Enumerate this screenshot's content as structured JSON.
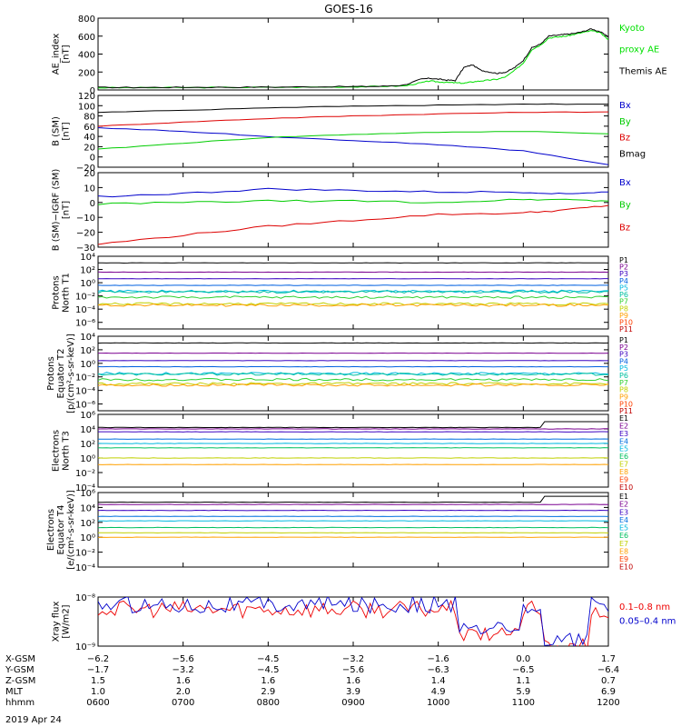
{
  "title": "GOES-16",
  "date": "2019 Apr 24",
  "chart_data": [
    {
      "type": "line",
      "ylabel": [
        "AE_index",
        "[nT]"
      ],
      "ylim": [
        0,
        800
      ],
      "yticks": [
        {
          "v": 0,
          "t": "0"
        },
        {
          "v": 200,
          "t": "200"
        },
        {
          "v": 400,
          "t": "400"
        },
        {
          "v": 600,
          "t": "600"
        },
        {
          "v": 800,
          "t": "800"
        }
      ],
      "series": [
        {
          "name": "Kyoto",
          "color": "#00e000",
          "x": [
            0,
            0.5,
            1,
            1.5,
            2,
            2.5,
            3,
            3.3,
            3.6,
            3.8,
            3.9,
            4.0,
            4.1,
            4.2,
            4.3,
            4.4,
            4.5,
            4.6,
            4.7,
            4.8,
            4.9,
            5.0,
            5.1,
            5.2,
            5.3,
            5.4,
            5.5,
            5.6,
            5.7,
            5.8,
            5.9,
            6.0
          ],
          "y": [
            25,
            25,
            27,
            28,
            30,
            32,
            35,
            40,
            45,
            80,
            100,
            90,
            85,
            80,
            75,
            90,
            100,
            110,
            120,
            150,
            220,
            300,
            450,
            500,
            580,
            590,
            600,
            620,
            640,
            660,
            640,
            560
          ]
        },
        {
          "name": "proxy AE",
          "color": "#00e000",
          "x": [],
          "y": []
        },
        {
          "name": "Themis AE",
          "color": "#000000",
          "x": [
            0,
            0.5,
            1,
            1.5,
            2,
            2.5,
            3,
            3.3,
            3.6,
            3.8,
            3.9,
            4.0,
            4.1,
            4.2,
            4.3,
            4.4,
            4.5,
            4.6,
            4.7,
            4.8,
            4.9,
            5.0,
            5.1,
            5.2,
            5.3,
            5.4,
            5.5,
            5.6,
            5.7,
            5.8,
            5.9,
            6.0
          ],
          "y": [
            28,
            28,
            30,
            30,
            32,
            35,
            38,
            40,
            55,
            120,
            130,
            120,
            110,
            105,
            250,
            280,
            220,
            200,
            185,
            200,
            250,
            330,
            470,
            510,
            600,
            610,
            620,
            630,
            650,
            680,
            650,
            590
          ]
        }
      ]
    },
    {
      "type": "line",
      "ylabel": [
        "B (SM)",
        "[nT]"
      ],
      "ylim": [
        -20,
        120
      ],
      "yticks": [
        {
          "v": -20,
          "t": "−20"
        },
        {
          "v": 0,
          "t": "0"
        },
        {
          "v": 20,
          "t": "20"
        },
        {
          "v": 40,
          "t": "40"
        },
        {
          "v": 60,
          "t": "60"
        },
        {
          "v": 80,
          "t": "80"
        },
        {
          "v": 100,
          "t": "100"
        },
        {
          "v": 120,
          "t": "120"
        }
      ],
      "series": [
        {
          "name": "Bx",
          "color": "#0000cc",
          "x": [
            0,
            1,
            2,
            3,
            4,
            5,
            6
          ],
          "y": [
            57,
            50,
            40,
            32,
            24,
            12,
            -15
          ]
        },
        {
          "name": "By",
          "color": "#00cc00",
          "x": [
            0,
            1,
            2,
            3,
            4,
            5,
            6
          ],
          "y": [
            15,
            27,
            38,
            44,
            48,
            50,
            45
          ]
        },
        {
          "name": "Bz",
          "color": "#dd0000",
          "x": [
            0,
            1,
            2,
            3,
            4,
            5,
            6
          ],
          "y": [
            60,
            68,
            75,
            80,
            84,
            87,
            88
          ]
        },
        {
          "name": "Bmag",
          "color": "#000000",
          "x": [
            0,
            1,
            2,
            3,
            4,
            5,
            6
          ],
          "y": [
            87,
            91,
            96,
            99,
            101,
            103,
            103
          ]
        }
      ]
    },
    {
      "type": "line",
      "ylabel": [
        "B (SM)−IGRF (SM)",
        "[nT]"
      ],
      "ylim": [
        -30,
        20
      ],
      "yticks": [
        {
          "v": -30,
          "t": "−30"
        },
        {
          "v": -20,
          "t": "−20"
        },
        {
          "v": -10,
          "t": "−10"
        },
        {
          "v": 0,
          "t": "0"
        },
        {
          "v": 10,
          "t": "10"
        },
        {
          "v": 20,
          "t": "20"
        }
      ],
      "series": [
        {
          "name": "Bx",
          "color": "#0000cc",
          "x": [
            0,
            1,
            2,
            3,
            4,
            5,
            5.5,
            6
          ],
          "y": [
            4,
            6,
            9,
            8,
            7,
            7,
            6,
            7
          ]
        },
        {
          "name": "By",
          "color": "#00cc00",
          "x": [
            0,
            1,
            2,
            3,
            4,
            5,
            5.5,
            6
          ],
          "y": [
            -1,
            0,
            1,
            1,
            0,
            2,
            2,
            1
          ]
        },
        {
          "name": "Bz",
          "color": "#dd0000",
          "x": [
            0,
            1,
            2,
            3,
            4,
            5,
            5.5,
            6
          ],
          "y": [
            -28,
            -22,
            -16,
            -12,
            -8,
            -7,
            -5,
            -2
          ]
        }
      ]
    },
    {
      "type": "line",
      "ylog": true,
      "ylabel": [
        "Protons",
        "North T1"
      ],
      "ylim": [
        -7,
        4
      ],
      "yticks": [
        {
          "v": 4,
          "t": "10⁴"
        },
        {
          "v": 2,
          "t": "10²"
        },
        {
          "v": 0,
          "t": "10⁰"
        },
        {
          "v": -2,
          "t": "10⁻²"
        },
        {
          "v": -4,
          "t": "10⁻⁴"
        },
        {
          "v": -6,
          "t": "10⁻⁶"
        }
      ],
      "series": [
        {
          "name": "P1",
          "color": "#000000",
          "level": 3.0
        },
        {
          "name": "P2",
          "color": "#7a0090",
          "level": 1.6
        },
        {
          "name": "P3",
          "color": "#3a00c0",
          "level": 0.6
        },
        {
          "name": "P4",
          "color": "#0060e0",
          "level": -0.4
        },
        {
          "name": "P5",
          "color": "#00b8e0",
          "level": -1.3
        },
        {
          "name": "P6",
          "color": "#00c0a0",
          "level": -1.4
        },
        {
          "name": "P7",
          "color": "#30d030",
          "level": -2.2
        },
        {
          "name": "P8",
          "color": "#c0d000",
          "level": -3.2
        },
        {
          "name": "P9",
          "color": "#ffa000",
          "level": -3.4
        },
        {
          "name": "P10",
          "color": "#ff4000",
          "level": null
        },
        {
          "name": "P11",
          "color": "#c00000",
          "level": null
        }
      ]
    },
    {
      "type": "line",
      "ylog": true,
      "ylabel": [
        "Protons",
        "Equator T2",
        "[p/(cm²-s-sr-keV)]"
      ],
      "ylim": [
        -7,
        4
      ],
      "yticks": [
        {
          "v": 4,
          "t": "10⁴"
        },
        {
          "v": 2,
          "t": "10²"
        },
        {
          "v": 0,
          "t": "10⁰"
        },
        {
          "v": -2,
          "t": "10⁻²"
        },
        {
          "v": -4,
          "t": "10⁻⁴"
        },
        {
          "v": -6,
          "t": "10⁻⁶"
        }
      ],
      "series": [
        {
          "name": "P1",
          "color": "#000000",
          "level": 3.0
        },
        {
          "name": "P2",
          "color": "#7a0090",
          "level": 1.5
        },
        {
          "name": "P3",
          "color": "#3a00c0",
          "level": 0.4
        },
        {
          "name": "P4",
          "color": "#0060e0",
          "level": -0.5
        },
        {
          "name": "P5",
          "color": "#00b8e0",
          "level": -1.5
        },
        {
          "name": "P6",
          "color": "#00c0a0",
          "level": -1.6
        },
        {
          "name": "P7",
          "color": "#30d030",
          "level": -2.4
        },
        {
          "name": "P8",
          "color": "#c0d000",
          "level": -3.0
        },
        {
          "name": "P9",
          "color": "#ffa000",
          "level": -3.2
        },
        {
          "name": "P10",
          "color": "#ff4000",
          "level": null
        },
        {
          "name": "P11",
          "color": "#c00000",
          "level": null
        }
      ]
    },
    {
      "type": "line",
      "ylog": true,
      "ylabel": [
        "Electrons",
        "North T3"
      ],
      "ylim": [
        -4,
        6
      ],
      "yticks": [
        {
          "v": 6,
          "t": "10⁶"
        },
        {
          "v": 4,
          "t": "10⁴"
        },
        {
          "v": 2,
          "t": "10²"
        },
        {
          "v": 0,
          "t": "10⁰"
        },
        {
          "v": -2,
          "t": "10⁻²"
        },
        {
          "v": -4,
          "t": "10⁻⁴"
        }
      ],
      "series": [
        {
          "name": "E1",
          "color": "#000000",
          "level": 4.2
        },
        {
          "name": "E2",
          "color": "#7a0090",
          "level": 4.0
        },
        {
          "name": "E3",
          "color": "#3a00c0",
          "level": 3.6
        },
        {
          "name": "E4",
          "color": "#0070e0",
          "level": 2.6
        },
        {
          "name": "E5",
          "color": "#00b8e0",
          "level": 2.0
        },
        {
          "name": "E6",
          "color": "#00c060",
          "level": 1.4
        },
        {
          "name": "E7",
          "color": "#c0d000",
          "level": 0.0
        },
        {
          "name": "E8",
          "color": "#ffa000",
          "level": -0.9
        },
        {
          "name": "E9",
          "color": "#ff4000",
          "level": null
        },
        {
          "name": "E10",
          "color": "#c00000",
          "level": null
        }
      ]
    },
    {
      "type": "line",
      "ylog": true,
      "ylabel": [
        "Electrons",
        "Equator T4",
        "[e/(cm²-s-sr-keV)]"
      ],
      "ylim": [
        -4,
        6
      ],
      "yticks": [
        {
          "v": 6,
          "t": "10⁶"
        },
        {
          "v": 4,
          "t": "10⁴"
        },
        {
          "v": 2,
          "t": "10²"
        },
        {
          "v": 0,
          "t": "10⁰"
        },
        {
          "v": -2,
          "t": "10⁻²"
        },
        {
          "v": -4,
          "t": "10⁻⁴"
        }
      ],
      "series": [
        {
          "name": "E1",
          "color": "#000000",
          "level": 4.7
        },
        {
          "name": "E2",
          "color": "#7a0090",
          "level": 4.4
        },
        {
          "name": "E3",
          "color": "#3a00c0",
          "level": 3.6
        },
        {
          "name": "E4",
          "color": "#0070e0",
          "level": 2.8
        },
        {
          "name": "E5",
          "color": "#00b8e0",
          "level": 2.2
        },
        {
          "name": "E6",
          "color": "#00c060",
          "level": 1.3
        },
        {
          "name": "E7",
          "color": "#c0d000",
          "level": 0.6
        },
        {
          "name": "E8",
          "color": "#ffa000",
          "level": 0.0
        },
        {
          "name": "E9",
          "color": "#ff4000",
          "level": null
        },
        {
          "name": "E10",
          "color": "#c00000",
          "level": null
        }
      ]
    },
    {
      "type": "line",
      "ylog": true,
      "ylabel": [
        "Xray flux",
        "[W/m2]"
      ],
      "ylim": [
        -9,
        -8
      ],
      "yticks": [
        {
          "v": -8,
          "t": "10⁻⁸"
        },
        {
          "v": -9,
          "t": "10⁻⁹"
        }
      ],
      "series": [
        {
          "name": "0.1–0.8 nm",
          "color": "#ee0000",
          "level": -8.25
        },
        {
          "name": "0.05–0.4 nm",
          "color": "#0000cc",
          "level": -8.15
        }
      ]
    }
  ],
  "x_axis": {
    "xlim": [
      0,
      6
    ],
    "row_labels": [
      "X-GSM",
      "Y-GSM",
      "Z-GSM",
      "MLT",
      "hhmm"
    ],
    "columns": [
      {
        "x": 0,
        "vals": [
          "−6.2",
          "−1.7",
          "1.5",
          "1.0",
          "0600"
        ]
      },
      {
        "x": 1,
        "vals": [
          "−5.6",
          "−3.2",
          "1.6",
          "2.0",
          "0700"
        ]
      },
      {
        "x": 2,
        "vals": [
          "−4.5",
          "−4.5",
          "1.6",
          "2.9",
          "0800"
        ]
      },
      {
        "x": 3,
        "vals": [
          "−3.2",
          "−5.6",
          "1.6",
          "3.9",
          "0900"
        ]
      },
      {
        "x": 4,
        "vals": [
          "−1.6",
          "−6.3",
          "1.4",
          "4.9",
          "1000"
        ]
      },
      {
        "x": 5,
        "vals": [
          "0.0",
          "−6.5",
          "1.1",
          "5.9",
          "1100"
        ]
      },
      {
        "x": 6,
        "vals": [
          "1.7",
          "−6.4",
          "0.7",
          "6.9",
          "1200"
        ]
      }
    ]
  }
}
